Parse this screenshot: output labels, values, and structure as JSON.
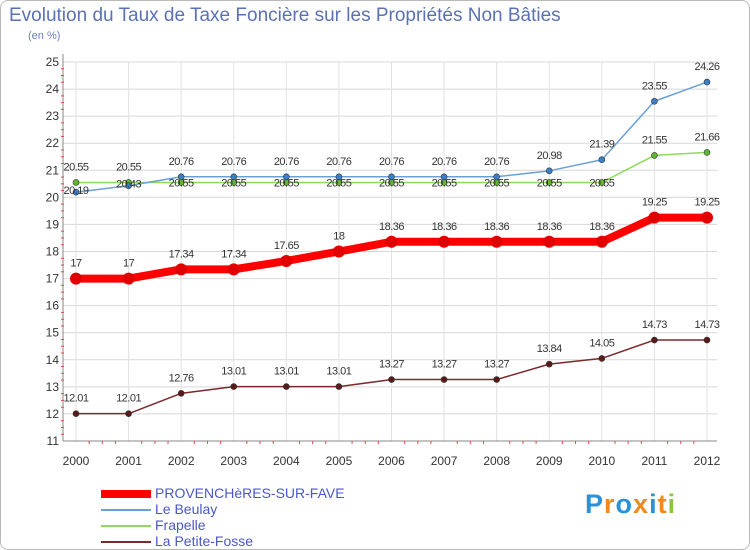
{
  "title": "Evolution du Taux de Taxe Foncière sur les Propriétés Non Bâties",
  "unit_label": "(en %)",
  "brand": {
    "text": "Proxiti"
  },
  "chart_data": {
    "type": "line",
    "title": "Evolution du Taux de Taxe Foncière sur les Propriétés Non Bâties",
    "ylabel": "(en %)",
    "xlabel": "",
    "ylim": [
      11,
      25
    ],
    "y_ticks": [
      11,
      12,
      13,
      14,
      15,
      16,
      17,
      18,
      19,
      20,
      21,
      22,
      23,
      24,
      25
    ],
    "categories": [
      "2000",
      "2001",
      "2002",
      "2003",
      "2004",
      "2005",
      "2006",
      "2007",
      "2008",
      "2009",
      "2010",
      "2011",
      "2012"
    ],
    "legend_position": "bottom-left",
    "series": [
      {
        "name": "PROVENCHèRES-SUR-FAVE",
        "color": "#ff0000",
        "marker_color": "#d40000",
        "values": [
          17,
          17,
          17.34,
          17.34,
          17.65,
          18,
          18.36,
          18.36,
          18.36,
          18.36,
          18.36,
          19.25,
          19.25
        ],
        "labels": [
          "17",
          "17",
          "17.34",
          "17.34",
          "17.65",
          "18",
          "18.36",
          "18.36",
          "18.36",
          "18.36",
          "18.36",
          "19.25",
          "19.25"
        ]
      },
      {
        "name": "Le Beulay",
        "color": "#6aa0d6",
        "marker_color": "#3b7fc4",
        "values": [
          20.19,
          20.43,
          20.76,
          20.76,
          20.76,
          20.76,
          20.76,
          20.76,
          20.76,
          20.98,
          21.39,
          23.55,
          24.26
        ],
        "labels": [
          "20.19",
          "20.43",
          "20.76",
          "20.76",
          "20.76",
          "20.76",
          "20.76",
          "20.76",
          "20.76",
          "20.98",
          "21.39",
          "23.55",
          "24.26"
        ]
      },
      {
        "name": "Frapelle",
        "color": "#8fd95f",
        "marker_color": "#5cb82c",
        "values": [
          20.55,
          20.55,
          20.55,
          20.55,
          20.55,
          20.55,
          20.55,
          20.55,
          20.55,
          20.55,
          20.55,
          21.55,
          21.66
        ],
        "labels": [
          "20.55",
          "20.55",
          "20.55",
          "20.55",
          "20.55",
          "20.55",
          "20.55",
          "20.55",
          "20.55",
          "20.55",
          "20.55",
          "21.55",
          "21.66"
        ]
      },
      {
        "name": "La Petite-Fosse",
        "color": "#7a2a2a",
        "marker_color": "#5a1a1a",
        "values": [
          12.01,
          12.01,
          12.76,
          13.01,
          13.01,
          13.01,
          13.27,
          13.27,
          13.27,
          13.84,
          14.05,
          14.73,
          14.73
        ],
        "labels": [
          "12.01",
          "12.01",
          "12.76",
          "13.01",
          "13.01",
          "13.01",
          "13.27",
          "13.27",
          "13.27",
          "13.84",
          "14.05",
          "14.73",
          "14.73"
        ]
      }
    ]
  }
}
